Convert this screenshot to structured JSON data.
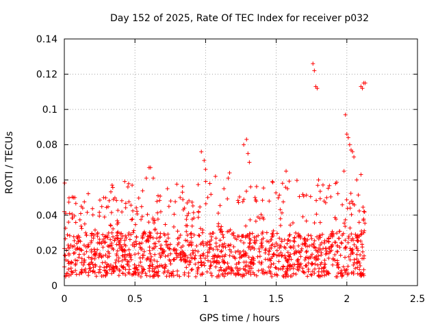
{
  "chart_data": {
    "type": "scatter",
    "title": "Day 152 of 2025, Rate Of TEC Index for receiver p032",
    "xlabel": "GPS time / hours",
    "ylabel": "ROTI / TECUs",
    "xlim": [
      0,
      2.5
    ],
    "ylim": [
      0,
      0.14
    ],
    "xticks": [
      "0",
      "0.5",
      "1",
      "1.5",
      "2",
      "2.5"
    ],
    "xtick_values": [
      0,
      0.5,
      1,
      1.5,
      2,
      2.5
    ],
    "yticks": [
      "0",
      "0.02",
      "0.04",
      "0.06",
      "0.08",
      "0.1",
      "0.12",
      "0.14"
    ],
    "ytick_values": [
      0,
      0.02,
      0.04,
      0.06,
      0.08,
      0.1,
      0.12,
      0.14
    ],
    "grid": true,
    "marker": "plus",
    "color": "#ff0000",
    "x_data_range": [
      0,
      2.13
    ],
    "bulk_range": [
      0.005,
      0.03
    ],
    "sample_points": [
      [
        0.0,
        0.042
      ],
      [
        0.01,
        0.041
      ],
      [
        0.03,
        0.036
      ],
      [
        0.12,
        0.045
      ],
      [
        0.13,
        0.044
      ],
      [
        0.45,
        0.056
      ],
      [
        0.48,
        0.057
      ],
      [
        0.58,
        0.061
      ],
      [
        0.6,
        0.067
      ],
      [
        0.61,
        0.067
      ],
      [
        0.63,
        0.061
      ],
      [
        0.73,
        0.055
      ],
      [
        0.82,
        0.05
      ],
      [
        0.97,
        0.076
      ],
      [
        0.99,
        0.071
      ],
      [
        1.0,
        0.066
      ],
      [
        1.03,
        0.058
      ],
      [
        1.07,
        0.062
      ],
      [
        1.13,
        0.055
      ],
      [
        1.16,
        0.061
      ],
      [
        1.17,
        0.064
      ],
      [
        1.27,
        0.08
      ],
      [
        1.29,
        0.083
      ],
      [
        1.3,
        0.075
      ],
      [
        1.31,
        0.07
      ],
      [
        1.35,
        0.05
      ],
      [
        1.45,
        0.048
      ],
      [
        1.53,
        0.038
      ],
      [
        1.57,
        0.065
      ],
      [
        1.58,
        0.055
      ],
      [
        1.76,
        0.126
      ],
      [
        1.77,
        0.122
      ],
      [
        1.78,
        0.113
      ],
      [
        1.79,
        0.112
      ],
      [
        1.8,
        0.06
      ],
      [
        1.85,
        0.047
      ],
      [
        1.92,
        0.058
      ],
      [
        1.98,
        0.065
      ],
      [
        1.99,
        0.097
      ],
      [
        2.0,
        0.086
      ],
      [
        2.01,
        0.084
      ],
      [
        2.02,
        0.08
      ],
      [
        2.03,
        0.077
      ],
      [
        2.04,
        0.076
      ],
      [
        2.05,
        0.073
      ],
      [
        2.07,
        0.06
      ],
      [
        2.1,
        0.063
      ],
      [
        2.1,
        0.113
      ],
      [
        2.11,
        0.112
      ],
      [
        2.12,
        0.115
      ],
      [
        2.13,
        0.115
      ],
      [
        2.12,
        0.03
      ],
      [
        2.12,
        0.009
      ],
      [
        2.0,
        0.009
      ],
      [
        1.5,
        0.01
      ],
      [
        1.2,
        0.007
      ],
      [
        1.25,
        0.006
      ],
      [
        0.8,
        0.006
      ],
      [
        0.3,
        0.007
      ],
      [
        0.05,
        0.008
      ]
    ]
  }
}
